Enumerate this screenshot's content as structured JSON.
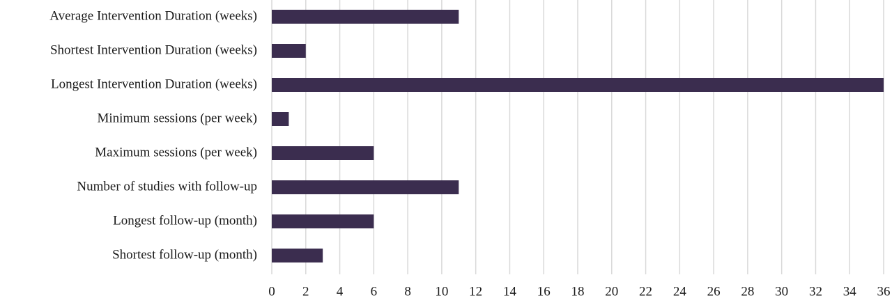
{
  "chart_data": {
    "type": "bar",
    "orientation": "horizontal",
    "categories": [
      "Average Intervention Duration (weeks)",
      "Shortest Intervention Duration (weeks)",
      "Longest Intervention Duration (weeks)",
      "Minimum sessions (per week)",
      "Maximum sessions (per week)",
      "Number of studies with follow-up",
      "Longest follow-up (month)",
      "Shortest follow-up (month)"
    ],
    "values": [
      11,
      2,
      36,
      1,
      6,
      11,
      6,
      3
    ],
    "color": "#3b2d4f",
    "xlim": [
      0,
      36
    ],
    "xticks": [
      0,
      2,
      4,
      6,
      8,
      10,
      12,
      14,
      16,
      18,
      20,
      22,
      24,
      26,
      28,
      30,
      32,
      34,
      36
    ],
    "grid": true
  }
}
